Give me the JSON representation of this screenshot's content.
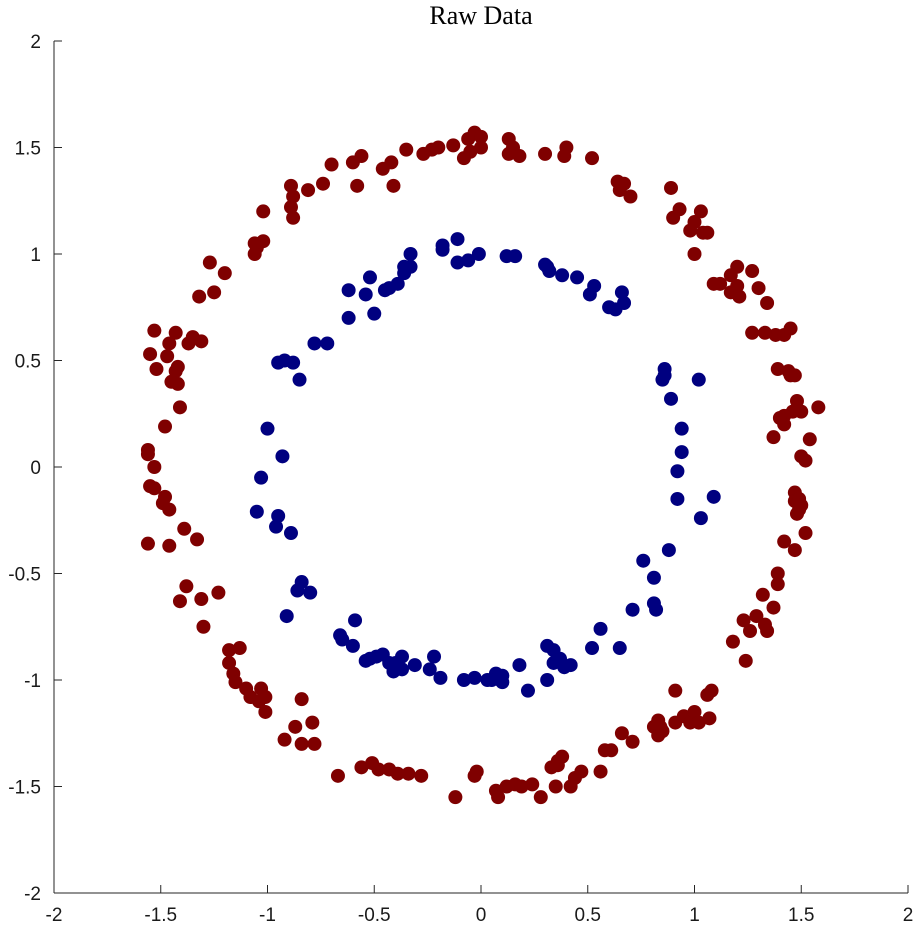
{
  "chart_data": {
    "type": "scatter",
    "title": "Raw Data",
    "xlabel": "",
    "ylabel": "",
    "xlim": [
      -2,
      2
    ],
    "ylim": [
      -2,
      2
    ],
    "grid": false,
    "legend": "none",
    "xticks": [
      "-2",
      "-1.5",
      "-1",
      "-0.5",
      "0",
      "0.5",
      "1",
      "1.5",
      "2"
    ],
    "yticks": [
      "-2",
      "-1.5",
      "-1",
      "-0.5",
      "0",
      "0.5",
      "1",
      "1.5",
      "2"
    ],
    "series": [
      {
        "color": "#7f0000",
        "points": [
          [
            -0.42,
            1.43
          ],
          [
            -0.35,
            1.49
          ],
          [
            -0.27,
            1.47
          ],
          [
            -0.2,
            1.5
          ],
          [
            -0.13,
            1.51
          ],
          [
            -0.06,
            1.54
          ],
          [
            -0.03,
            1.57
          ],
          [
            0.0,
            1.55
          ],
          [
            -0.05,
            1.48
          ],
          [
            -0.08,
            1.45
          ],
          [
            0.13,
            1.54
          ],
          [
            0.15,
            1.5
          ],
          [
            0.18,
            1.46
          ],
          [
            0.13,
            1.47
          ],
          [
            0.3,
            1.47
          ],
          [
            0.4,
            1.5
          ],
          [
            0.39,
            1.46
          ],
          [
            0.52,
            1.45
          ],
          [
            -0.23,
            1.49
          ],
          [
            0.0,
            1.5
          ],
          [
            0.64,
            1.34
          ],
          [
            0.67,
            1.33
          ],
          [
            0.7,
            1.27
          ],
          [
            0.65,
            1.3
          ],
          [
            0.89,
            1.31
          ],
          [
            0.9,
            1.17
          ],
          [
            0.93,
            1.21
          ],
          [
            1.0,
            1.15
          ],
          [
            1.03,
            1.2
          ],
          [
            1.04,
            1.1
          ],
          [
            0.98,
            1.11
          ],
          [
            1.06,
            1.1
          ],
          [
            1.0,
            1.0
          ],
          [
            -0.41,
            1.32
          ],
          [
            -0.58,
            1.32
          ],
          [
            -0.46,
            1.4
          ],
          [
            -0.56,
            1.46
          ],
          [
            -0.6,
            1.43
          ],
          [
            -0.7,
            1.42
          ],
          [
            -0.74,
            1.33
          ],
          [
            -0.88,
            1.27
          ],
          [
            -0.89,
            1.22
          ],
          [
            -0.88,
            1.17
          ],
          [
            -0.81,
            1.3
          ],
          [
            -0.89,
            1.32
          ],
          [
            -1.02,
            1.2
          ],
          [
            -1.02,
            1.06
          ],
          [
            -1.05,
            1.03
          ],
          [
            -1.06,
            1.05
          ],
          [
            -1.06,
            1.0
          ],
          [
            -1.2,
            0.91
          ],
          [
            -1.27,
            0.96
          ],
          [
            -1.25,
            0.82
          ],
          [
            -1.32,
            0.8
          ],
          [
            -1.35,
            0.61
          ],
          [
            -1.37,
            0.58
          ],
          [
            -1.31,
            0.59
          ],
          [
            -1.43,
            0.63
          ],
          [
            -1.46,
            0.58
          ],
          [
            -1.53,
            0.64
          ],
          [
            -1.55,
            0.53
          ],
          [
            -1.47,
            0.52
          ],
          [
            -1.42,
            0.47
          ],
          [
            -1.43,
            0.45
          ],
          [
            -1.52,
            0.46
          ],
          [
            -1.45,
            0.4
          ],
          [
            -1.42,
            0.39
          ],
          [
            -1.41,
            0.28
          ],
          [
            -1.48,
            0.19
          ],
          [
            -1.56,
            0.06
          ],
          [
            -1.56,
            0.08
          ],
          [
            -1.53,
            0.0
          ],
          [
            -1.55,
            -0.09
          ],
          [
            -1.53,
            -0.1
          ],
          [
            -1.48,
            -0.14
          ],
          [
            -1.49,
            -0.17
          ],
          [
            -1.46,
            -0.2
          ],
          [
            -1.39,
            -0.29
          ],
          [
            -1.33,
            -0.34
          ],
          [
            -1.46,
            -0.37
          ],
          [
            -1.56,
            -0.36
          ],
          [
            -1.38,
            -0.56
          ],
          [
            -1.41,
            -0.63
          ],
          [
            -1.31,
            -0.62
          ],
          [
            -1.23,
            -0.59
          ],
          [
            -1.3,
            -0.75
          ],
          [
            -1.18,
            -0.86
          ],
          [
            -1.13,
            -0.85
          ],
          [
            -1.18,
            -0.92
          ],
          [
            -1.16,
            -0.97
          ],
          [
            -1.15,
            -1.01
          ],
          [
            -1.1,
            -1.04
          ],
          [
            -1.08,
            -1.08
          ],
          [
            -1.03,
            -1.04
          ],
          [
            -1.04,
            -1.1
          ],
          [
            -1.01,
            -1.08
          ],
          [
            -1.01,
            -1.15
          ],
          [
            -0.84,
            -1.09
          ],
          [
            -0.92,
            -1.28
          ],
          [
            -0.87,
            -1.22
          ],
          [
            -0.84,
            -1.3
          ],
          [
            -0.79,
            -1.2
          ],
          [
            -0.78,
            -1.3
          ],
          [
            -0.67,
            -1.45
          ],
          [
            -0.56,
            -1.41
          ],
          [
            -0.51,
            -1.39
          ],
          [
            -0.48,
            -1.42
          ],
          [
            -0.43,
            -1.42
          ],
          [
            -0.39,
            -1.44
          ],
          [
            -0.34,
            -1.44
          ],
          [
            -0.28,
            -1.45
          ],
          [
            -0.12,
            -1.55
          ],
          [
            -0.02,
            -1.43
          ],
          [
            -0.03,
            -1.45
          ],
          [
            0.07,
            -1.52
          ],
          [
            0.12,
            -1.5
          ],
          [
            0.08,
            -1.55
          ],
          [
            0.16,
            -1.49
          ],
          [
            0.19,
            -1.5
          ],
          [
            0.24,
            -1.49
          ],
          [
            0.28,
            -1.55
          ],
          [
            0.33,
            -1.41
          ],
          [
            0.36,
            -1.38
          ],
          [
            0.36,
            -1.4
          ],
          [
            0.38,
            -1.36
          ],
          [
            0.44,
            -1.46
          ],
          [
            0.42,
            -1.5
          ],
          [
            0.47,
            -1.43
          ],
          [
            0.35,
            -1.5
          ],
          [
            0.58,
            -1.33
          ],
          [
            0.61,
            -1.33
          ],
          [
            0.56,
            -1.43
          ],
          [
            0.66,
            -1.25
          ],
          [
            0.71,
            -1.29
          ],
          [
            0.81,
            -1.22
          ],
          [
            0.83,
            -1.19
          ],
          [
            0.84,
            -1.22
          ],
          [
            0.83,
            -1.26
          ],
          [
            0.85,
            -1.24
          ],
          [
            0.91,
            -1.2
          ],
          [
            0.91,
            -1.05
          ],
          [
            0.95,
            -1.17
          ],
          [
            0.98,
            -1.2
          ],
          [
            1.0,
            -1.15
          ],
          [
            1.02,
            -1.2
          ],
          [
            1.06,
            -1.07
          ],
          [
            1.08,
            -1.05
          ],
          [
            1.07,
            -1.18
          ],
          [
            1.18,
            -0.82
          ],
          [
            1.23,
            -0.72
          ],
          [
            1.24,
            -0.91
          ],
          [
            1.26,
            -0.77
          ],
          [
            1.29,
            -0.7
          ],
          [
            1.32,
            -0.6
          ],
          [
            1.33,
            -0.74
          ],
          [
            1.34,
            -0.77
          ],
          [
            1.37,
            -0.66
          ],
          [
            1.39,
            -0.5
          ],
          [
            1.39,
            -0.55
          ],
          [
            1.42,
            -0.35
          ],
          [
            1.47,
            -0.39
          ],
          [
            1.49,
            -0.2
          ],
          [
            1.47,
            -0.12
          ],
          [
            1.47,
            -0.16
          ],
          [
            1.49,
            -0.15
          ],
          [
            1.5,
            -0.18
          ],
          [
            1.52,
            -0.31
          ],
          [
            1.48,
            -0.22
          ],
          [
            1.5,
            0.05
          ],
          [
            1.52,
            0.03
          ],
          [
            1.54,
            0.13
          ],
          [
            1.58,
            0.28
          ],
          [
            1.48,
            0.31
          ],
          [
            1.5,
            0.26
          ],
          [
            1.46,
            0.26
          ],
          [
            1.42,
            0.24
          ],
          [
            1.42,
            0.2
          ],
          [
            1.37,
            0.14
          ],
          [
            1.4,
            0.23
          ],
          [
            1.44,
            0.45
          ],
          [
            1.47,
            0.43
          ],
          [
            1.45,
            0.43
          ],
          [
            1.39,
            0.46
          ],
          [
            1.38,
            0.62
          ],
          [
            1.42,
            0.62
          ],
          [
            1.45,
            0.65
          ],
          [
            1.33,
            0.63
          ],
          [
            1.27,
            0.63
          ],
          [
            1.34,
            0.77
          ],
          [
            1.3,
            0.84
          ],
          [
            1.27,
            0.92
          ],
          [
            1.21,
            0.8
          ],
          [
            1.17,
            0.82
          ],
          [
            1.2,
            0.85
          ],
          [
            1.2,
            0.94
          ],
          [
            1.17,
            0.9
          ],
          [
            1.12,
            0.86
          ],
          [
            1.09,
            0.86
          ]
        ]
      },
      {
        "color": "#000080",
        "points": [
          [
            -0.36,
            0.94
          ],
          [
            -0.33,
            0.94
          ],
          [
            -0.33,
            1.0
          ],
          [
            -0.36,
            0.91
          ],
          [
            -0.39,
            0.86
          ],
          [
            -0.43,
            0.84
          ],
          [
            -0.45,
            0.83
          ],
          [
            -0.52,
            0.89
          ],
          [
            -0.54,
            0.81
          ],
          [
            -0.62,
            0.83
          ],
          [
            -0.62,
            0.7
          ],
          [
            -0.5,
            0.72
          ],
          [
            -0.18,
            1.04
          ],
          [
            -0.18,
            1.02
          ],
          [
            -0.11,
            1.07
          ],
          [
            -0.11,
            0.96
          ],
          [
            -0.06,
            0.97
          ],
          [
            -0.01,
            1.0
          ],
          [
            0.12,
            0.99
          ],
          [
            0.16,
            0.99
          ],
          [
            0.3,
            0.95
          ],
          [
            0.31,
            0.94
          ],
          [
            0.32,
            0.92
          ],
          [
            0.38,
            0.9
          ],
          [
            0.45,
            0.89
          ],
          [
            0.51,
            0.81
          ],
          [
            0.53,
            0.85
          ],
          [
            0.6,
            0.75
          ],
          [
            0.63,
            0.74
          ],
          [
            0.66,
            0.82
          ],
          [
            0.67,
            0.77
          ],
          [
            -0.78,
            0.58
          ],
          [
            -0.72,
            0.58
          ],
          [
            -0.85,
            0.41
          ],
          [
            -0.88,
            0.49
          ],
          [
            -0.92,
            0.5
          ],
          [
            -0.95,
            0.49
          ],
          [
            -1.0,
            0.18
          ],
          [
            -0.93,
            0.05
          ],
          [
            -1.03,
            -0.05
          ],
          [
            -1.05,
            -0.21
          ],
          [
            -0.95,
            -0.23
          ],
          [
            -0.96,
            -0.28
          ],
          [
            -0.89,
            -0.31
          ],
          [
            -0.84,
            -0.54
          ],
          [
            -0.86,
            -0.58
          ],
          [
            -0.8,
            -0.59
          ],
          [
            -0.91,
            -0.7
          ],
          [
            -0.66,
            -0.79
          ],
          [
            -0.65,
            -0.81
          ],
          [
            -0.59,
            -0.72
          ],
          [
            -0.6,
            -0.84
          ],
          [
            -0.52,
            -0.9
          ],
          [
            -0.54,
            -0.91
          ],
          [
            -0.49,
            -0.89
          ],
          [
            -0.46,
            -0.88
          ],
          [
            -0.43,
            -0.92
          ],
          [
            -0.4,
            -0.92
          ],
          [
            -0.41,
            -0.96
          ],
          [
            -0.37,
            -0.89
          ],
          [
            -0.37,
            -0.95
          ],
          [
            -0.31,
            -0.93
          ],
          [
            -0.24,
            -0.95
          ],
          [
            -0.22,
            -0.89
          ],
          [
            -0.19,
            -0.99
          ],
          [
            -0.08,
            -1.0
          ],
          [
            -0.03,
            -0.99
          ],
          [
            0.03,
            -1.0
          ],
          [
            0.05,
            -1.0
          ],
          [
            0.07,
            -0.97
          ],
          [
            0.09,
            -1.0
          ],
          [
            0.1,
            -0.98
          ],
          [
            0.1,
            -1.01
          ],
          [
            0.18,
            -0.93
          ],
          [
            0.22,
            -1.05
          ],
          [
            0.31,
            -1.0
          ],
          [
            0.31,
            -0.84
          ],
          [
            0.34,
            -0.86
          ],
          [
            0.34,
            -0.92
          ],
          [
            0.37,
            -0.9
          ],
          [
            0.39,
            -0.94
          ],
          [
            0.42,
            -0.93
          ],
          [
            0.52,
            -0.85
          ],
          [
            0.56,
            -0.76
          ],
          [
            0.65,
            -0.85
          ],
          [
            0.71,
            -0.67
          ],
          [
            0.76,
            -0.44
          ],
          [
            0.81,
            -0.52
          ],
          [
            0.82,
            -0.67
          ],
          [
            0.81,
            -0.64
          ],
          [
            0.88,
            -0.39
          ],
          [
            0.92,
            -0.15
          ],
          [
            0.92,
            -0.02
          ],
          [
            0.94,
            0.07
          ],
          [
            0.94,
            0.18
          ],
          [
            0.89,
            0.32
          ],
          [
            0.85,
            0.41
          ],
          [
            0.86,
            0.43
          ],
          [
            0.86,
            0.46
          ],
          [
            1.02,
            0.41
          ],
          [
            1.03,
            -0.24
          ],
          [
            1.09,
            -0.14
          ]
        ]
      }
    ]
  }
}
